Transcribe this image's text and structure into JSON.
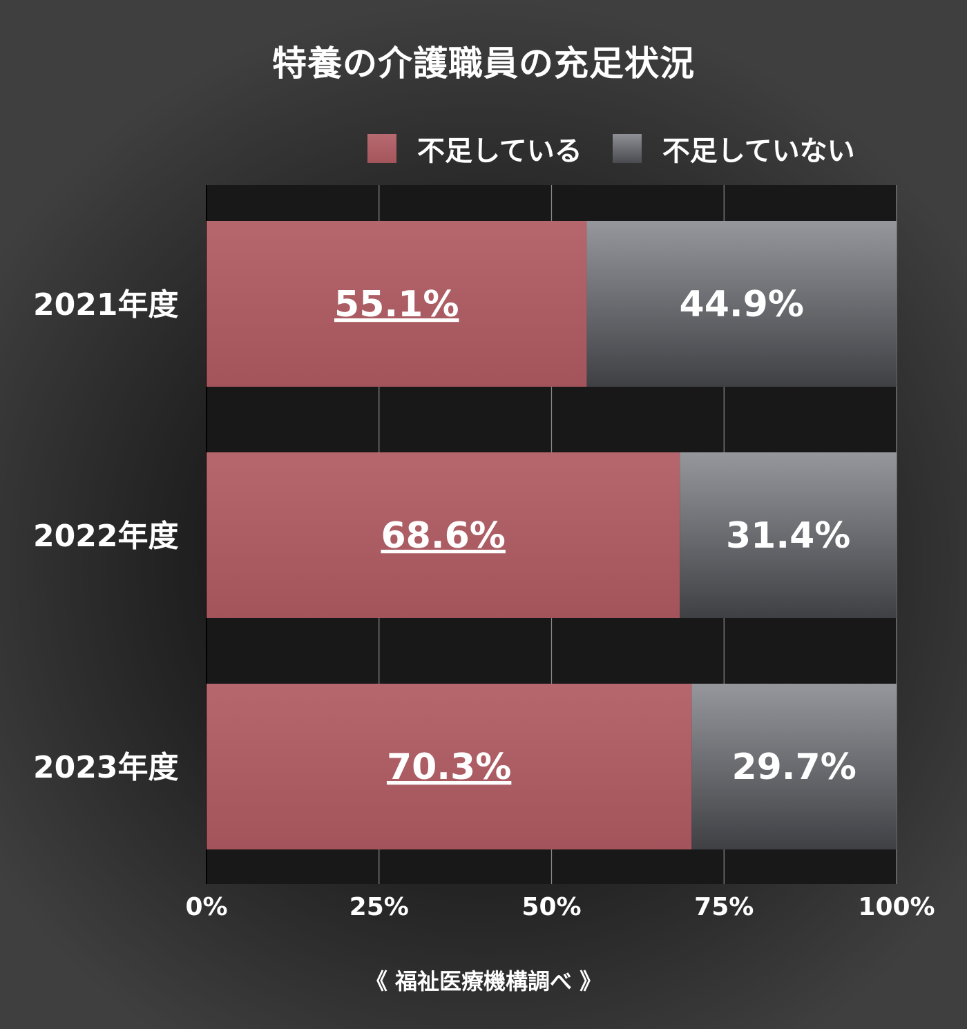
{
  "title": "特養の介護職員の充足状況",
  "source": "《 福祉医療機構調べ 》",
  "colors": {
    "shortage": "#ac5b61",
    "no_shortage": "#6c6d72"
  },
  "chart_data": {
    "type": "bar",
    "orientation": "horizontal",
    "stacked": true,
    "categories": [
      "2021年度",
      "2022年度",
      "2023年度"
    ],
    "series": [
      {
        "name": "不足している",
        "values": [
          55.1,
          68.6,
          70.3
        ],
        "labels": [
          "55.1%",
          "68.6%",
          "70.3%"
        ],
        "underlined": true
      },
      {
        "name": "不足していない",
        "values": [
          44.9,
          31.4,
          29.7
        ],
        "labels": [
          "44.9%",
          "31.4%",
          "29.7%"
        ],
        "underlined": false
      }
    ],
    "xlim": [
      0,
      100
    ],
    "xticks": [
      0,
      25,
      50,
      75,
      100
    ],
    "xtick_labels": [
      "0%",
      "25%",
      "50%",
      "75%",
      "100%"
    ],
    "grid": true,
    "legend_position": "top-right"
  }
}
